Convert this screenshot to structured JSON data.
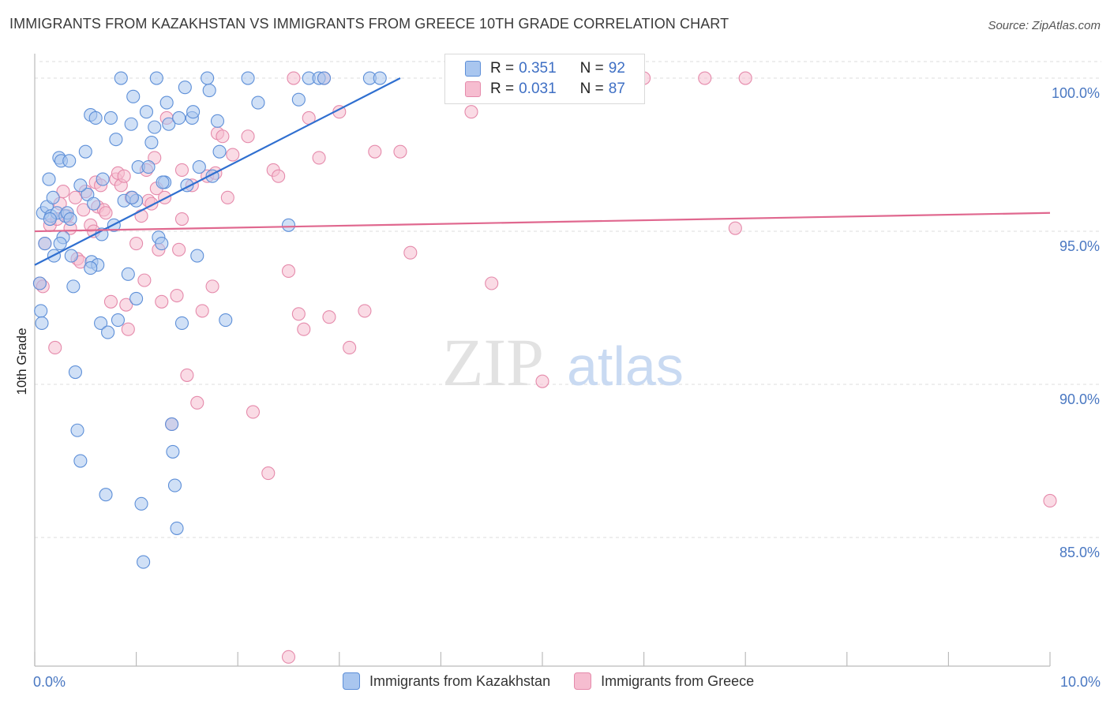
{
  "title": "IMMIGRANTS FROM KAZAKHSTAN VS IMMIGRANTS FROM GREECE 10TH GRADE CORRELATION CHART",
  "source": "Source: ZipAtlas.com",
  "watermark": {
    "zip": "ZIP",
    "atlas": "atlas"
  },
  "legend": {
    "rows": [
      {
        "r_label": "R = ",
        "r_value": "0.351",
        "n_label": "N = ",
        "n_value": "92"
      },
      {
        "r_label": "R = ",
        "r_value": "0.031",
        "n_label": "N = ",
        "n_value": "87"
      }
    ]
  },
  "colors": {
    "kazakhstan_fill": "#a9c6ef",
    "kazakhstan_stroke": "#5d8fd8",
    "kazakhstan_line": "#2f6fd0",
    "greece_fill": "#f6bdd0",
    "greece_stroke": "#e58aab",
    "greece_line": "#e0688f",
    "axis_text": "#4a78c2",
    "grid": "#dddddd"
  },
  "chart_data": {
    "type": "scatter",
    "title": "IMMIGRANTS FROM KAZAKHSTAN VS IMMIGRANTS FROM GREECE 10TH GRADE CORRELATION CHART",
    "xlabel": "",
    "ylabel": "10th Grade",
    "xlim": [
      0,
      10
    ],
    "ylim": [
      80.8,
      100.8
    ],
    "x_tick_labels": [
      "0.0%",
      "10.0%"
    ],
    "y_ticks": [
      85,
      90,
      95,
      100
    ],
    "y_tick_labels": [
      "85.0%",
      "90.0%",
      "95.0%",
      "100.0%"
    ],
    "series": [
      {
        "name": "Immigrants from Kazakhstan",
        "R": 0.351,
        "N": 92,
        "trend": {
          "x": [
            0.0,
            3.6
          ],
          "y": [
            93.9,
            100.0
          ]
        },
        "points": [
          [
            0.05,
            93.3
          ],
          [
            0.06,
            92.4
          ],
          [
            0.07,
            92.0
          ],
          [
            0.08,
            95.6
          ],
          [
            0.1,
            94.6
          ],
          [
            0.12,
            95.8
          ],
          [
            0.14,
            96.7
          ],
          [
            0.16,
            95.5
          ],
          [
            0.18,
            96.1
          ],
          [
            0.19,
            94.2
          ],
          [
            0.22,
            95.6
          ],
          [
            0.24,
            97.4
          ],
          [
            0.26,
            97.3
          ],
          [
            0.28,
            94.8
          ],
          [
            0.3,
            95.5
          ],
          [
            0.32,
            95.6
          ],
          [
            0.34,
            97.3
          ],
          [
            0.36,
            94.2
          ],
          [
            0.38,
            93.2
          ],
          [
            0.4,
            90.4
          ],
          [
            0.42,
            88.5
          ],
          [
            0.45,
            87.5
          ],
          [
            0.5,
            97.6
          ],
          [
            0.52,
            96.2
          ],
          [
            0.55,
            98.8
          ],
          [
            0.56,
            94.0
          ],
          [
            0.58,
            95.9
          ],
          [
            0.6,
            98.7
          ],
          [
            0.62,
            93.9
          ],
          [
            0.65,
            92.0
          ],
          [
            0.67,
            96.7
          ],
          [
            0.7,
            86.4
          ],
          [
            0.72,
            91.7
          ],
          [
            0.75,
            98.7
          ],
          [
            0.78,
            95.2
          ],
          [
            0.8,
            98.0
          ],
          [
            0.82,
            92.1
          ],
          [
            0.85,
            100.0
          ],
          [
            0.88,
            96.0
          ],
          [
            0.92,
            93.6
          ],
          [
            0.95,
            98.5
          ],
          [
            0.97,
            99.4
          ],
          [
            1.0,
            96.0
          ],
          [
            1.02,
            97.1
          ],
          [
            1.05,
            86.1
          ],
          [
            1.07,
            84.2
          ],
          [
            1.1,
            98.9
          ],
          [
            1.12,
            97.1
          ],
          [
            1.15,
            97.9
          ],
          [
            1.18,
            98.4
          ],
          [
            1.2,
            100.0
          ],
          [
            1.22,
            94.8
          ],
          [
            1.25,
            94.6
          ],
          [
            1.28,
            96.6
          ],
          [
            1.3,
            99.2
          ],
          [
            1.32,
            98.5
          ],
          [
            1.35,
            88.7
          ],
          [
            1.38,
            86.7
          ],
          [
            1.4,
            85.3
          ],
          [
            1.42,
            98.7
          ],
          [
            1.45,
            92.0
          ],
          [
            1.48,
            99.7
          ],
          [
            1.5,
            96.5
          ],
          [
            1.55,
            98.7
          ],
          [
            1.6,
            94.2
          ],
          [
            1.62,
            97.1
          ],
          [
            1.7,
            100.0
          ],
          [
            1.72,
            99.6
          ],
          [
            1.75,
            96.8
          ],
          [
            1.8,
            98.6
          ],
          [
            1.82,
            97.6
          ],
          [
            1.88,
            92.1
          ],
          [
            2.1,
            100.0
          ],
          [
            2.2,
            99.2
          ],
          [
            2.5,
            95.2
          ],
          [
            2.6,
            99.3
          ],
          [
            2.7,
            100.0
          ],
          [
            2.8,
            100.0
          ],
          [
            2.85,
            100.0
          ],
          [
            3.3,
            100.0
          ],
          [
            3.4,
            100.0
          ],
          [
            0.15,
            95.4
          ],
          [
            0.35,
            95.4
          ],
          [
            0.45,
            96.5
          ],
          [
            0.66,
            94.9
          ],
          [
            0.96,
            96.1
          ],
          [
            1.26,
            96.6
          ],
          [
            1.56,
            98.9
          ],
          [
            1.36,
            87.8
          ],
          [
            0.55,
            93.8
          ],
          [
            0.25,
            94.6
          ],
          [
            1.0,
            92.8
          ]
        ]
      },
      {
        "name": "Immigrants from Greece",
        "R": 0.031,
        "N": 87,
        "trend": {
          "x": [
            0.0,
            10.0
          ],
          "y": [
            95.0,
            95.6
          ]
        },
        "points": [
          [
            0.05,
            93.3
          ],
          [
            0.08,
            93.2
          ],
          [
            0.1,
            94.6
          ],
          [
            0.15,
            95.2
          ],
          [
            0.2,
            91.2
          ],
          [
            0.25,
            95.9
          ],
          [
            0.28,
            96.3
          ],
          [
            0.32,
            95.5
          ],
          [
            0.35,
            95.1
          ],
          [
            0.4,
            96.1
          ],
          [
            0.42,
            94.1
          ],
          [
            0.45,
            94.0
          ],
          [
            0.48,
            95.7
          ],
          [
            0.5,
            96.3
          ],
          [
            0.55,
            95.2
          ],
          [
            0.58,
            95.0
          ],
          [
            0.6,
            96.6
          ],
          [
            0.62,
            95.8
          ],
          [
            0.65,
            96.5
          ],
          [
            0.68,
            95.7
          ],
          [
            0.7,
            95.6
          ],
          [
            0.75,
            92.7
          ],
          [
            0.8,
            96.7
          ],
          [
            0.82,
            96.9
          ],
          [
            0.85,
            96.5
          ],
          [
            0.88,
            96.8
          ],
          [
            0.9,
            92.6
          ],
          [
            0.92,
            91.8
          ],
          [
            0.95,
            96.1
          ],
          [
            1.0,
            94.6
          ],
          [
            1.05,
            95.5
          ],
          [
            1.08,
            93.4
          ],
          [
            1.1,
            97.0
          ],
          [
            1.12,
            96.0
          ],
          [
            1.15,
            95.9
          ],
          [
            1.18,
            97.4
          ],
          [
            1.2,
            96.4
          ],
          [
            1.22,
            94.4
          ],
          [
            1.25,
            92.7
          ],
          [
            1.28,
            96.1
          ],
          [
            1.3,
            98.7
          ],
          [
            1.35,
            88.7
          ],
          [
            1.4,
            92.9
          ],
          [
            1.42,
            94.4
          ],
          [
            1.45,
            95.4
          ],
          [
            1.5,
            90.3
          ],
          [
            1.55,
            96.5
          ],
          [
            1.6,
            89.4
          ],
          [
            1.65,
            92.4
          ],
          [
            1.7,
            96.8
          ],
          [
            1.75,
            93.2
          ],
          [
            1.8,
            98.2
          ],
          [
            1.85,
            98.1
          ],
          [
            1.9,
            96.1
          ],
          [
            1.95,
            97.5
          ],
          [
            2.1,
            98.1
          ],
          [
            2.15,
            89.1
          ],
          [
            2.3,
            87.1
          ],
          [
            2.35,
            97.0
          ],
          [
            2.4,
            96.8
          ],
          [
            2.5,
            93.7
          ],
          [
            2.6,
            92.3
          ],
          [
            2.65,
            91.8
          ],
          [
            2.7,
            98.7
          ],
          [
            2.8,
            97.4
          ],
          [
            2.9,
            92.2
          ],
          [
            3.0,
            98.9
          ],
          [
            3.1,
            91.2
          ],
          [
            3.25,
            92.4
          ],
          [
            3.35,
            97.6
          ],
          [
            3.6,
            97.6
          ],
          [
            3.7,
            94.3
          ],
          [
            4.3,
            98.9
          ],
          [
            4.5,
            93.3
          ],
          [
            5.0,
            90.1
          ],
          [
            5.9,
            100.0
          ],
          [
            6.0,
            100.0
          ],
          [
            7.0,
            100.0
          ],
          [
            6.6,
            100.0
          ],
          [
            6.9,
            95.1
          ],
          [
            10.0,
            86.2
          ],
          [
            2.5,
            81.1
          ],
          [
            0.22,
            95.4
          ],
          [
            1.78,
            96.9
          ],
          [
            2.55,
            100.0
          ],
          [
            2.85,
            100.0
          ],
          [
            1.45,
            97.0
          ]
        ]
      }
    ]
  },
  "bottom_legend": {
    "items": [
      {
        "label": "Immigrants from Kazakhstan"
      },
      {
        "label": "Immigrants from Greece"
      }
    ]
  }
}
